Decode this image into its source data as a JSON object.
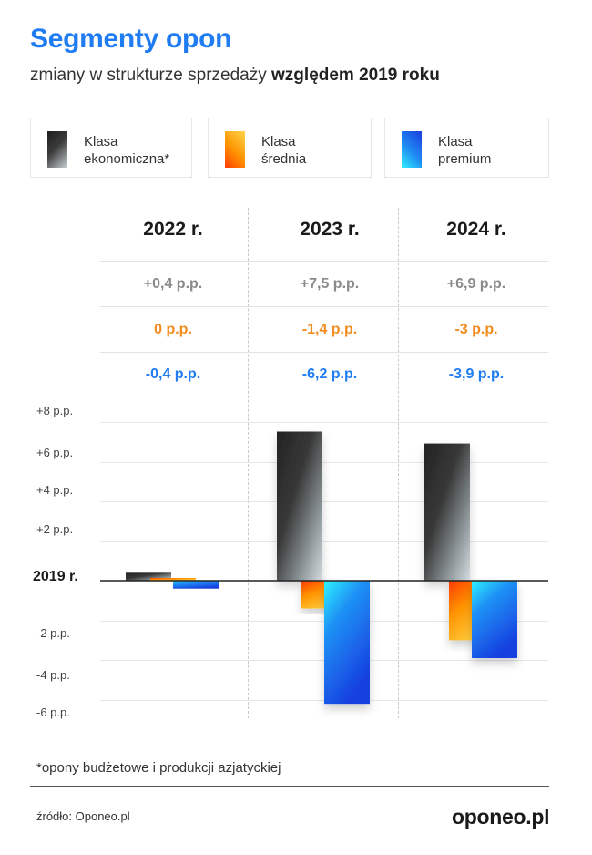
{
  "title": "Segmenty opon",
  "subtitle": {
    "normal": "zmiany w strukturze sprzedaży ",
    "bold": "względem 2019 roku"
  },
  "legend": [
    {
      "line1": "Klasa",
      "line2": "ekonomiczna*",
      "color": "#3a3a3a"
    },
    {
      "line1": "Klasa",
      "line2": "średnia",
      "color": "#ff9a1a"
    },
    {
      "line1": "Klasa",
      "line2": "premium",
      "color": "#1f7cf2"
    }
  ],
  "colors": {
    "economic_text": "#8a8a8a",
    "medium_text": "#f28c1e",
    "premium_text": "#1f7cf2"
  },
  "table": {
    "years": [
      "2022 r.",
      "2023 r.",
      "2024 r."
    ],
    "economic": [
      "+0,4 p.p.",
      "+7,5 p.p.",
      "+6,9 p.p."
    ],
    "medium": [
      "0 p.p.",
      "-1,4 p.p.",
      "-3 p.p."
    ],
    "premium": [
      "-0,4 p.p.",
      "-6,2 p.p.",
      "-3,9 p.p."
    ]
  },
  "chart_data": {
    "type": "bar",
    "title": "Segmenty opon",
    "subtitle": "zmiany w strukturze sprzedaży względem 2019 roku",
    "categories": [
      "2022 r.",
      "2023 r.",
      "2024 r."
    ],
    "series": [
      {
        "name": "Klasa ekonomiczna*",
        "values": [
          0.4,
          7.5,
          6.9
        ]
      },
      {
        "name": "Klasa średnia",
        "values": [
          0,
          -1.4,
          -3
        ]
      },
      {
        "name": "Klasa premium",
        "values": [
          -0.4,
          -6.2,
          -3.9
        ]
      }
    ],
    "baseline_label": "2019 r.",
    "ytick_labels": [
      "+8 p.p.",
      "+6 p.p.",
      "+4 p.p.",
      "+2 p.p.",
      "-2 p.p.",
      "-4 p.p.",
      "-6 p.p."
    ],
    "ytick_values": [
      8,
      6,
      4,
      2,
      -2,
      -4,
      -6
    ],
    "ylim": [
      -6,
      8
    ],
    "ylabel": "p.p.",
    "xlabel": ""
  },
  "footnote": "*opony budżetowe i produkcji azjatyckiej",
  "source": "źródło: Oponeo.pl",
  "logo": "oponeo.pl"
}
